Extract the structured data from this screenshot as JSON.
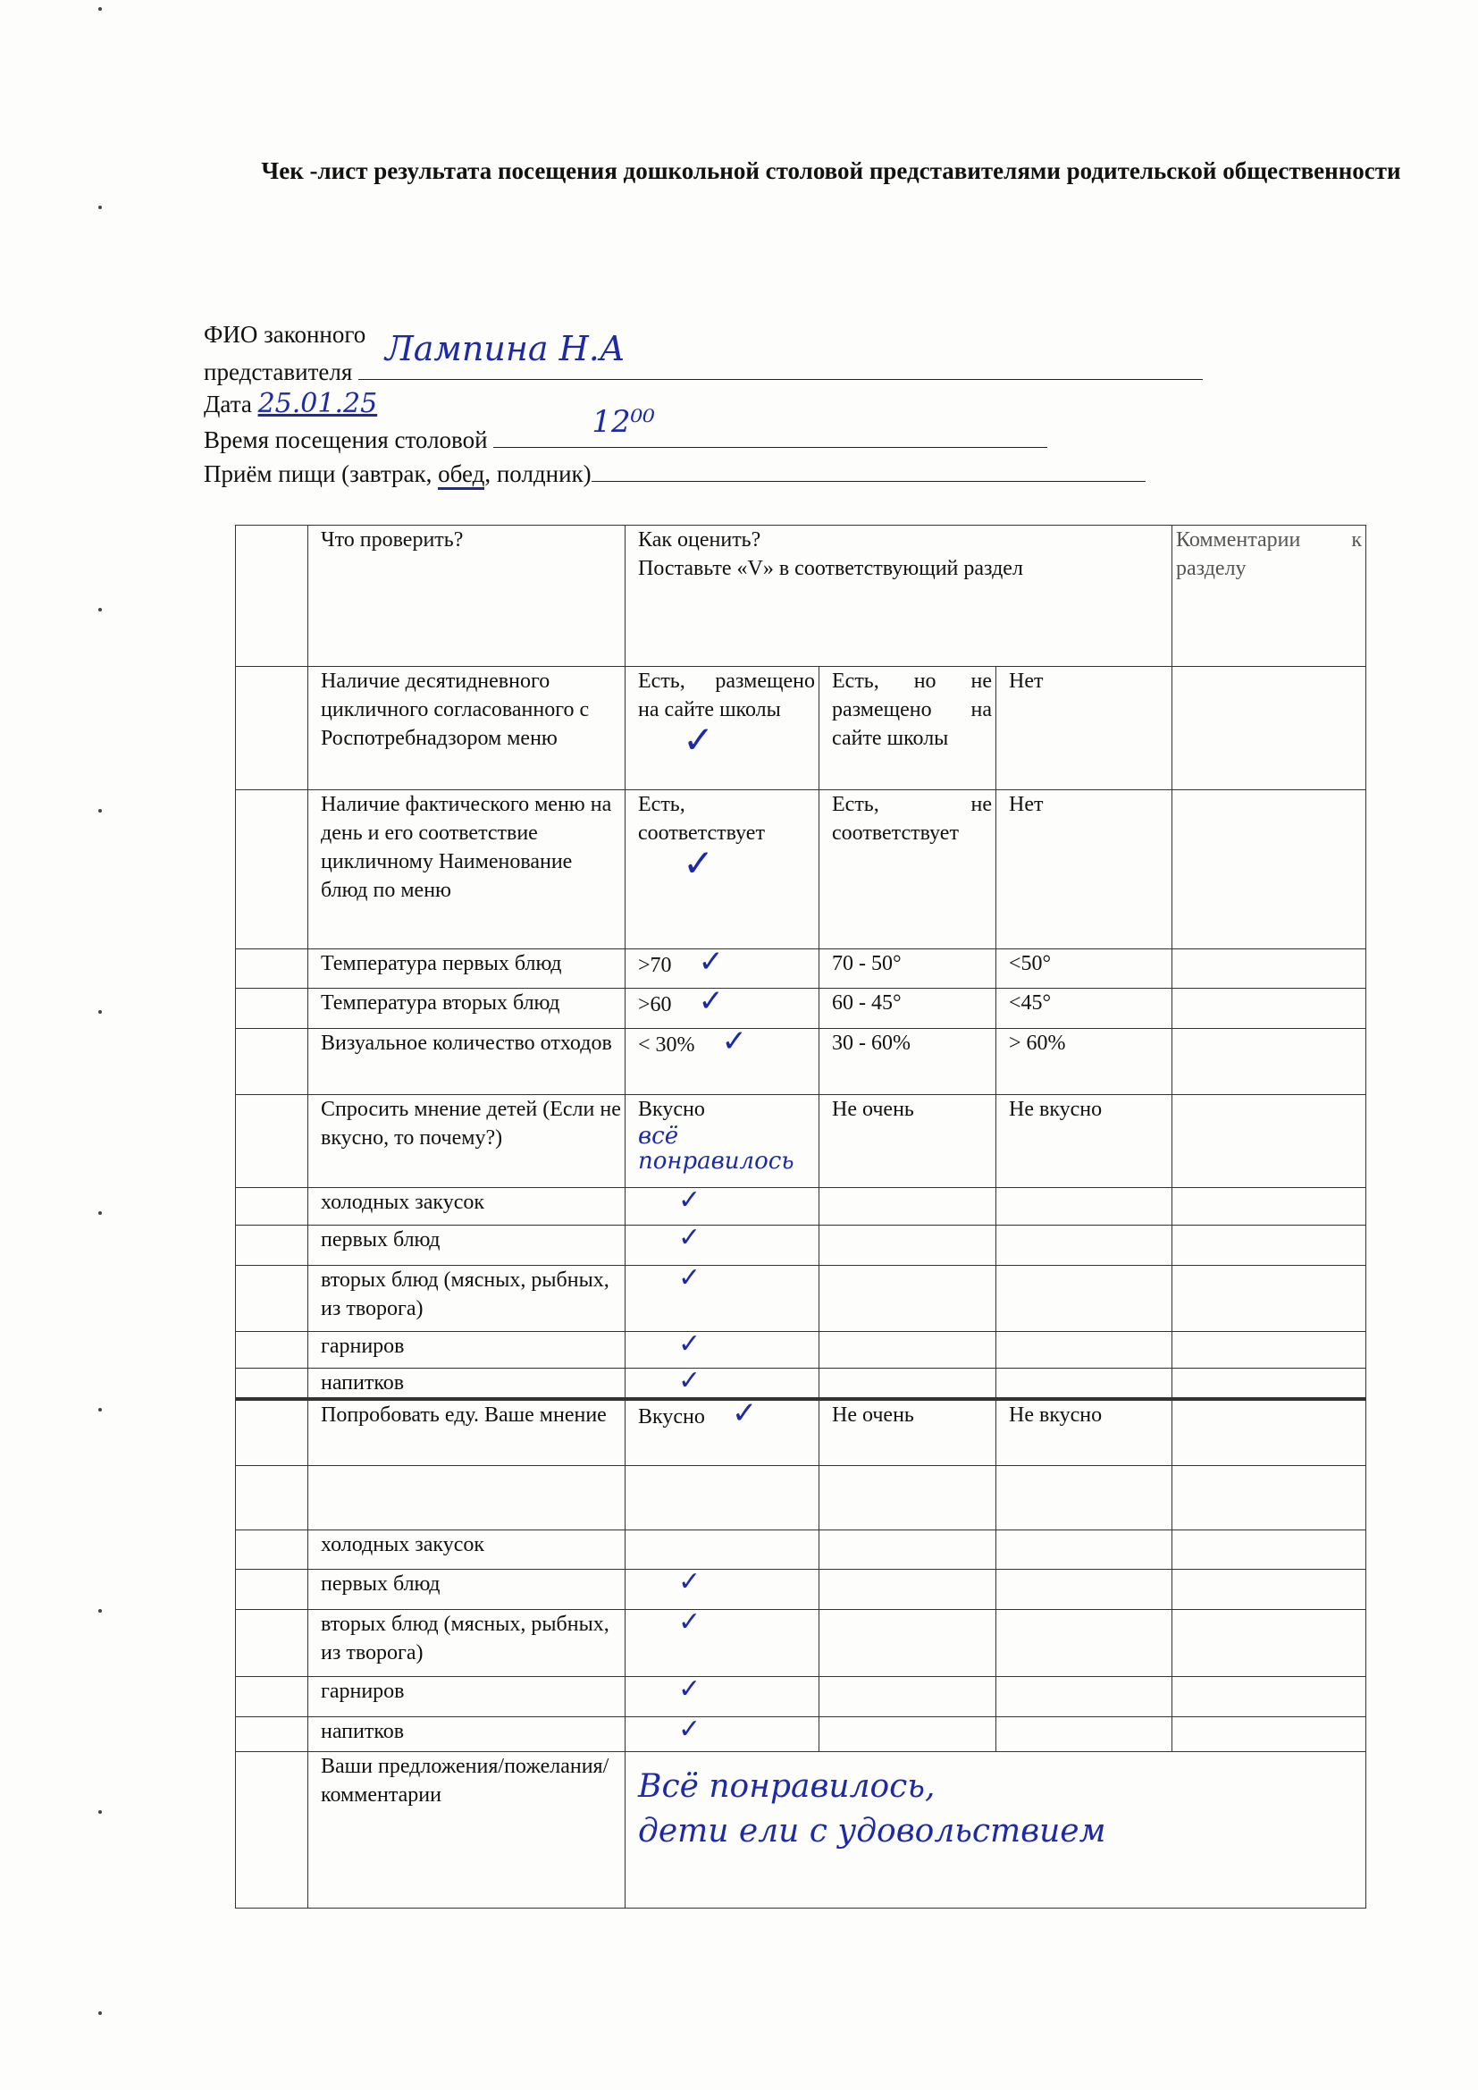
{
  "title": "Чек -лист результата посещения дошкольной столовой представителями родительской общественности",
  "form": {
    "fio_label_1": "ФИО законного",
    "fio_label_2": "представителя",
    "fio_value": "Лампина Н.А",
    "date_label": "Дата",
    "date_value": "25.01.25",
    "time_label": "Время посещения столовой",
    "time_value": "12⁰⁰",
    "meal_label_pre": "Приём пищи (завтрак, ",
    "meal_selected": "обед",
    "meal_label_post": ", полдник)"
  },
  "colors": {
    "ink": "#1c2aa8",
    "text": "#111111"
  },
  "table": {
    "header": {
      "what": "Что проверить?",
      "how_1": "Как оценить?",
      "how_2": "Поставьте «V» в соответствующий раздел",
      "comment": "Комментарии к разделу"
    },
    "rows": [
      {
        "what": "Наличие десятидневного цикличного согласованного с Роспотребнадзором меню",
        "options": [
          "Есть, размещено на сайте школы",
          "Есть, но не размещено на сайте школы",
          "Нет"
        ],
        "checked": 0
      },
      {
        "what": "Наличие фактического меню на день и его соответствие цикличному Наименование блюд по меню",
        "options": [
          "Есть, соответствует",
          "Есть, не соответствует",
          "Нет"
        ],
        "checked": 0
      },
      {
        "what": "Температура первых блюд",
        "options": [
          ">70",
          "70 - 50°",
          "<50°"
        ],
        "checked": 0
      },
      {
        "what": "Температура вторых блюд",
        "options": [
          ">60",
          "60 - 45°",
          "<45°"
        ],
        "checked": 0
      },
      {
        "what": "Визуальное количество отходов",
        "options": [
          "< 30%",
          "30 - 60%",
          "> 60%"
        ],
        "checked": 0
      },
      {
        "what": "Спросить мнение детей (Если не вкусно, то почему?)",
        "options": [
          "Вкусно",
          "Не очень",
          "Не вкусно"
        ],
        "note": "всё понравилось"
      },
      {
        "what": "холодных закусок",
        "options": [
          "",
          "",
          ""
        ],
        "checked": 0
      },
      {
        "what": "первых блюд",
        "options": [
          "",
          "",
          ""
        ],
        "checked": 0
      },
      {
        "what": "вторых блюд (мясных, рыбных, из творога)",
        "options": [
          "",
          "",
          ""
        ],
        "checked": 0
      },
      {
        "what": "гарниров",
        "options": [
          "",
          "",
          ""
        ],
        "checked": 0
      },
      {
        "what": "напитков",
        "options": [
          "",
          "",
          ""
        ],
        "checked": 0
      },
      {
        "what": "Попробовать еду. Ваше мнение",
        "options": [
          "Вкусно",
          "Не очень",
          "Не вкусно"
        ],
        "checked": 0
      },
      {
        "what": "",
        "options": [
          "",
          "",
          ""
        ]
      },
      {
        "what": "холодных закусок",
        "options": [
          "",
          "",
          ""
        ]
      },
      {
        "what": "первых блюд",
        "options": [
          "",
          "",
          ""
        ],
        "checked": 0
      },
      {
        "what": "вторых блюд (мясных, рыбных, из творога)",
        "options": [
          "",
          "",
          ""
        ],
        "checked": 0
      },
      {
        "what": "гарниров",
        "options": [
          "",
          "",
          ""
        ],
        "checked": 0
      },
      {
        "what": "напитков",
        "options": [
          "",
          "",
          ""
        ],
        "checked": 0
      }
    ],
    "check_mark": "✓",
    "suggestions": {
      "label": "Ваши предложения/пожелания/ комментарии",
      "line_1": "Всё понравилось,",
      "line_2": "дети ели с удовольствием"
    }
  }
}
